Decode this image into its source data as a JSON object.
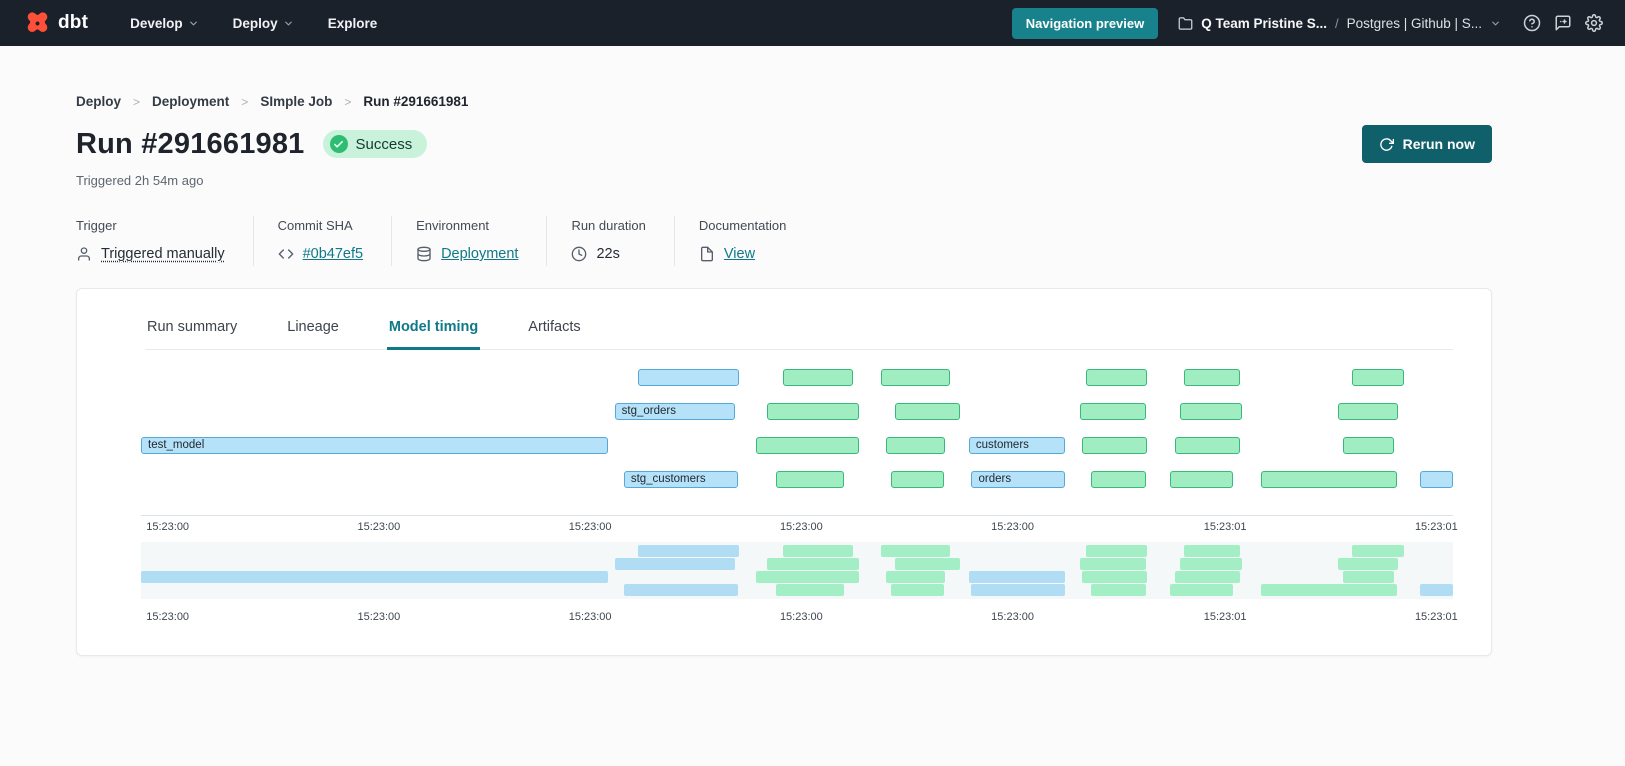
{
  "topbar": {
    "logo_text": "dbt",
    "menus": [
      {
        "label": "Develop",
        "has_chevron": true
      },
      {
        "label": "Deploy",
        "has_chevron": true
      },
      {
        "label": "Explore",
        "has_chevron": false
      }
    ],
    "navigation_preview_label": "Navigation preview",
    "account_name": "Q Team Pristine S...",
    "path_separator": "/",
    "project_name": "Postgres | Github | S..."
  },
  "breadcrumb": {
    "separator": ">",
    "items": [
      "Deploy",
      "Deployment",
      "SImple Job",
      "Run #291661981"
    ]
  },
  "header": {
    "title": "Run #291661981",
    "status_badge": "Success",
    "triggered_text": "Triggered 2h 54m ago",
    "rerun_button_label": "Rerun now"
  },
  "meta": {
    "trigger": {
      "label": "Trigger",
      "value": "Triggered manually"
    },
    "commit": {
      "label": "Commit SHA",
      "value": "#0b47ef5"
    },
    "environment": {
      "label": "Environment",
      "value": "Deployment"
    },
    "duration": {
      "label": "Run duration",
      "value": "22s"
    },
    "documentation": {
      "label": "Documentation",
      "value": "View"
    }
  },
  "tabs": [
    {
      "label": "Run summary",
      "active": false
    },
    {
      "label": "Lineage",
      "active": false
    },
    {
      "label": "Model timing",
      "active": true
    },
    {
      "label": "Artifacts",
      "active": false
    }
  ],
  "colors": {
    "accent_teal": "#0f7987",
    "rerun_button_teal": "#10606b",
    "nav_preview_teal": "#17818c",
    "logo_orange": "#ff4f38",
    "success_green": "#2ebd72",
    "success_badge_bg": "#c9f2da",
    "bar_blue_fill": "#b5e2f8",
    "bar_blue_border": "#56a8d9",
    "bar_green_fill": "#9fedc0",
    "bar_green_border": "#38b87a"
  },
  "chart_data": {
    "type": "gantt",
    "title": "Model timing",
    "x_axis_ticks": [
      "15:23:00",
      "15:23:00",
      "15:23:00",
      "15:23:00",
      "15:23:00",
      "15:23:01",
      "15:23:01"
    ],
    "tick_positions_pct": [
      0.4,
      16.5,
      32.6,
      48.7,
      64.8,
      81.0,
      97.1
    ],
    "labeled_models": [
      "test_model",
      "stg_orders",
      "stg_customers",
      "customers",
      "orders"
    ],
    "rows": [
      {
        "bars": [
          {
            "color": "blue",
            "label": "",
            "x": 37.9,
            "w": 7.7
          },
          {
            "color": "green",
            "label": "",
            "x": 48.9,
            "w": 5.4
          },
          {
            "color": "green",
            "label": "",
            "x": 56.4,
            "w": 5.3
          },
          {
            "color": "green",
            "label": "",
            "x": 72.0,
            "w": 4.7
          },
          {
            "color": "green",
            "label": "",
            "x": 79.5,
            "w": 4.3
          },
          {
            "color": "green",
            "label": "",
            "x": 92.3,
            "w": 4.0
          }
        ]
      },
      {
        "bars": [
          {
            "color": "blue",
            "label": "stg_orders",
            "x": 36.1,
            "w": 9.2
          },
          {
            "color": "green",
            "label": "",
            "x": 47.7,
            "w": 7.0
          },
          {
            "color": "green",
            "label": "",
            "x": 57.5,
            "w": 4.9
          },
          {
            "color": "green",
            "label": "",
            "x": 71.6,
            "w": 5.0
          },
          {
            "color": "green",
            "label": "",
            "x": 79.2,
            "w": 4.7
          },
          {
            "color": "green",
            "label": "",
            "x": 91.2,
            "w": 4.6
          }
        ]
      },
      {
        "bars": [
          {
            "color": "blue",
            "label": "test_model",
            "x": 0.0,
            "w": 35.6
          },
          {
            "color": "green",
            "label": "",
            "x": 46.9,
            "w": 7.8
          },
          {
            "color": "green",
            "label": "",
            "x": 56.8,
            "w": 4.5
          },
          {
            "color": "blue",
            "label": "customers",
            "x": 63.1,
            "w": 7.3
          },
          {
            "color": "green",
            "label": "",
            "x": 71.7,
            "w": 5.0
          },
          {
            "color": "green",
            "label": "",
            "x": 78.8,
            "w": 5.0
          },
          {
            "color": "green",
            "label": "",
            "x": 91.6,
            "w": 3.9
          }
        ]
      },
      {
        "bars": [
          {
            "color": "blue",
            "label": "stg_customers",
            "x": 36.8,
            "w": 8.7
          },
          {
            "color": "green",
            "label": "",
            "x": 48.4,
            "w": 5.2
          },
          {
            "color": "green",
            "label": "",
            "x": 57.2,
            "w": 4.0
          },
          {
            "color": "blue",
            "label": "orders",
            "x": 63.3,
            "w": 7.1
          },
          {
            "color": "green",
            "label": "",
            "x": 72.4,
            "w": 4.2
          },
          {
            "color": "green",
            "label": "",
            "x": 78.4,
            "w": 4.8
          },
          {
            "color": "green",
            "label": "",
            "x": 85.4,
            "w": 10.3
          },
          {
            "color": "blue",
            "label": "",
            "x": 97.5,
            "w": 2.5
          }
        ]
      }
    ]
  }
}
